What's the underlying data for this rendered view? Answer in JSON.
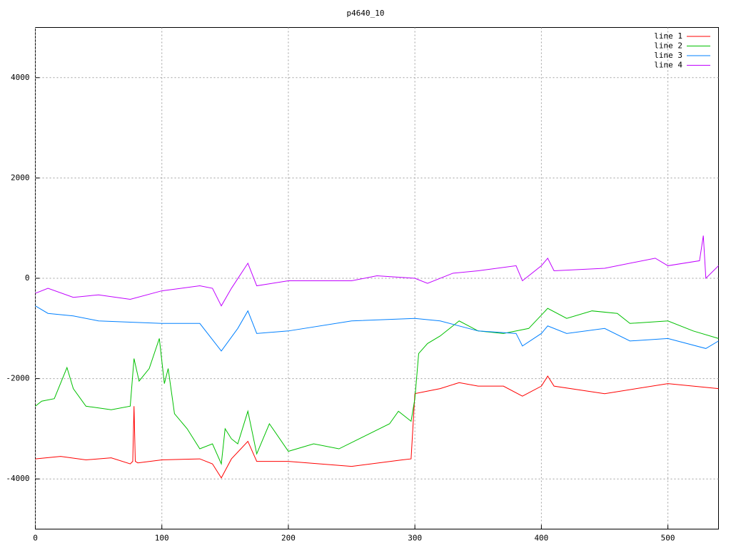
{
  "chart_data": {
    "type": "line",
    "title": "p4640_10",
    "xlim": [
      0,
      540
    ],
    "xticks": [
      0,
      100,
      200,
      300,
      400,
      500
    ],
    "ylim": [
      -5000,
      5000
    ],
    "yticks": [
      -4000,
      -2000,
      0,
      2000,
      4000
    ],
    "grid": true,
    "legend": "top-right",
    "series": [
      {
        "name": "line 1",
        "color": "#ff0000",
        "x": [
          0,
          20,
          40,
          60,
          75,
          77,
          78,
          79,
          81,
          100,
          130,
          140,
          147,
          155,
          168,
          175,
          200,
          250,
          290,
          297,
          300,
          310,
          320,
          335,
          350,
          370,
          385,
          400,
          405,
          410,
          450,
          500,
          540
        ],
        "values": [
          -3600,
          -3550,
          -3620,
          -3580,
          -3700,
          -3650,
          -2550,
          -3650,
          -3680,
          -3620,
          -3600,
          -3700,
          -3980,
          -3600,
          -3250,
          -3650,
          -3650,
          -3750,
          -3620,
          -3600,
          -2300,
          -2250,
          -2200,
          -2080,
          -2150,
          -2150,
          -2350,
          -2150,
          -1950,
          -2150,
          -2300,
          -2100,
          -2200
        ]
      },
      {
        "name": "line 2",
        "color": "#00c000",
        "x": [
          0,
          5,
          15,
          25,
          30,
          40,
          60,
          75,
          78,
          82,
          90,
          98,
          102,
          105,
          110,
          120,
          130,
          140,
          147,
          150,
          155,
          160,
          168,
          175,
          185,
          200,
          220,
          240,
          260,
          280,
          287,
          297,
          300,
          303,
          310,
          320,
          330,
          335,
          350,
          370,
          390,
          405,
          420,
          440,
          460,
          470,
          500,
          520,
          540
        ],
        "values": [
          -2550,
          -2450,
          -2400,
          -1780,
          -2200,
          -2550,
          -2620,
          -2550,
          -1600,
          -2050,
          -1800,
          -1200,
          -2100,
          -1800,
          -2700,
          -3000,
          -3400,
          -3300,
          -3700,
          -3000,
          -3200,
          -3300,
          -2650,
          -3500,
          -2900,
          -3450,
          -3300,
          -3400,
          -3150,
          -2900,
          -2650,
          -2850,
          -2400,
          -1500,
          -1300,
          -1150,
          -950,
          -850,
          -1050,
          -1100,
          -1000,
          -600,
          -800,
          -650,
          -700,
          -900,
          -850,
          -1050,
          -1200
        ]
      },
      {
        "name": "line 3",
        "color": "#0080ff",
        "x": [
          0,
          10,
          30,
          50,
          100,
          130,
          147,
          160,
          168,
          175,
          200,
          250,
          300,
          320,
          350,
          380,
          385,
          400,
          405,
          420,
          450,
          470,
          500,
          530,
          540
        ],
        "values": [
          -550,
          -700,
          -750,
          -850,
          -900,
          -900,
          -1450,
          -1000,
          -650,
          -1100,
          -1050,
          -850,
          -800,
          -850,
          -1050,
          -1100,
          -1350,
          -1100,
          -950,
          -1100,
          -1000,
          -1250,
          -1200,
          -1400,
          -1250
        ]
      },
      {
        "name": "line 4",
        "color": "#c000ff",
        "x": [
          0,
          10,
          30,
          50,
          75,
          100,
          130,
          140,
          147,
          155,
          168,
          175,
          200,
          250,
          270,
          300,
          310,
          330,
          350,
          380,
          385,
          400,
          405,
          410,
          450,
          490,
          500,
          525,
          528,
          530,
          540
        ],
        "values": [
          -300,
          -200,
          -380,
          -330,
          -420,
          -250,
          -150,
          -200,
          -550,
          -200,
          300,
          -150,
          -50,
          -50,
          50,
          0,
          -100,
          100,
          150,
          250,
          -50,
          250,
          400,
          150,
          200,
          400,
          250,
          350,
          850,
          0,
          250
        ]
      }
    ]
  }
}
